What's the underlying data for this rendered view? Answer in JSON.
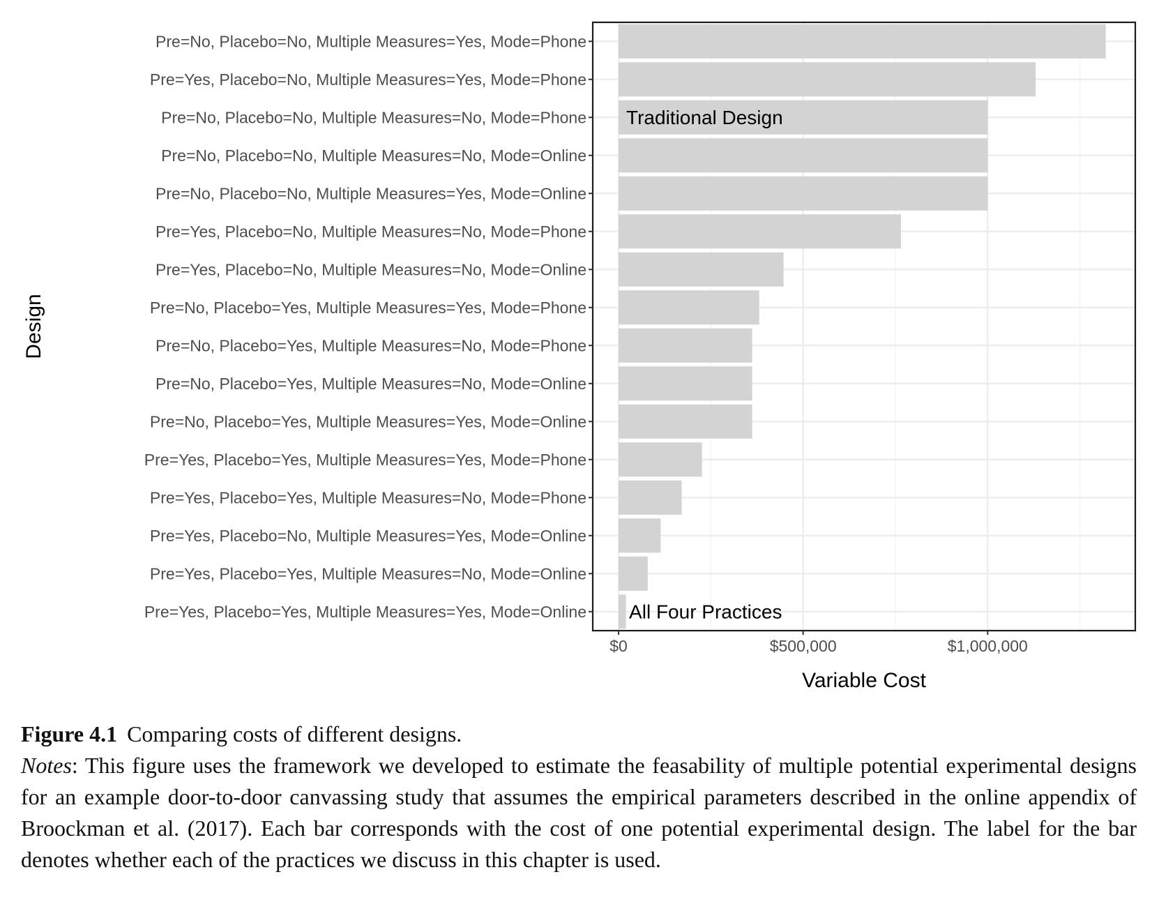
{
  "chart_data": {
    "type": "bar",
    "orientation": "horizontal",
    "xlabel": "Variable Cost",
    "ylabel": "Design",
    "xlim": [
      -70000,
      1400000
    ],
    "xticks": [
      0,
      500000,
      1000000
    ],
    "xtick_labels": [
      "$0",
      "$500,000",
      "$1,000,000"
    ],
    "grid": true,
    "bar_color": "#d3d3d3",
    "categories": [
      "Pre=No, Placebo=No, Multiple Measures=Yes, Mode=Phone",
      "Pre=Yes, Placebo=No, Multiple Measures=Yes, Mode=Phone",
      "Pre=No, Placebo=No, Multiple Measures=No, Mode=Phone",
      "Pre=No, Placebo=No, Multiple Measures=No, Mode=Online",
      "Pre=No, Placebo=No, Multiple Measures=Yes, Mode=Online",
      "Pre=Yes, Placebo=No, Multiple Measures=No, Mode=Phone",
      "Pre=Yes, Placebo=No, Multiple Measures=No, Mode=Online",
      "Pre=No, Placebo=Yes, Multiple Measures=Yes, Mode=Phone",
      "Pre=No, Placebo=Yes, Multiple Measures=No, Mode=Phone",
      "Pre=No, Placebo=Yes, Multiple Measures=No, Mode=Online",
      "Pre=No, Placebo=Yes, Multiple Measures=Yes, Mode=Online",
      "Pre=Yes, Placebo=Yes, Multiple Measures=Yes, Mode=Phone",
      "Pre=Yes, Placebo=Yes, Multiple Measures=No, Mode=Phone",
      "Pre=Yes, Placebo=No, Multiple Measures=Yes, Mode=Online",
      "Pre=Yes, Placebo=Yes, Multiple Measures=No, Mode=Online",
      "Pre=Yes, Placebo=Yes, Multiple Measures=Yes, Mode=Online"
    ],
    "values": [
      1320000,
      1130000,
      1000000,
      1000000,
      1000000,
      765000,
      447000,
      381000,
      362000,
      362000,
      362000,
      226000,
      171000,
      114000,
      79000,
      20000
    ],
    "annotations": [
      {
        "text": "Traditional Design",
        "category_index": 2
      },
      {
        "text": "All Four Practices",
        "category_index": 15
      }
    ]
  },
  "caption": {
    "figure_label": "Figure 4.1",
    "figure_title": "Comparing costs of different designs.",
    "notes_label": "Notes",
    "notes_text": ": This figure uses the framework we developed to estimate the feasability of multiple potential experimental designs for an example door-to-door canvassing study that assumes the empirical parameters described in the online appendix of Broockman et al. (2017). Each bar corresponds with the cost of one potential experimental design. The label for the bar denotes whether each of the practices we discuss in this chapter is used."
  }
}
